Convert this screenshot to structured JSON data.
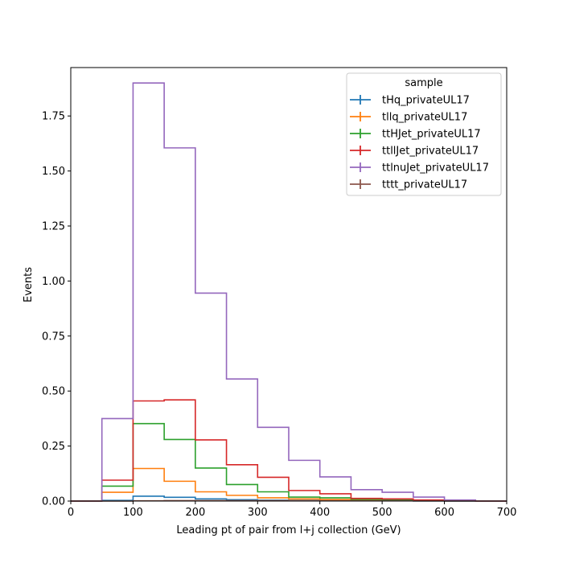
{
  "chart_data": {
    "type": "step-histogram",
    "xlabel": "Leading pt of pair from l+j collection (GeV)",
    "ylabel": "Events",
    "xlim": [
      0,
      700
    ],
    "ylim": [
      0,
      1.97
    ],
    "xticks": [
      "0",
      "100",
      "200",
      "300",
      "400",
      "500",
      "600",
      "700"
    ],
    "xtick_values": [
      0,
      100,
      200,
      300,
      400,
      500,
      600,
      700
    ],
    "yticks": [
      "0.00",
      "0.25",
      "0.50",
      "0.75",
      "1.00",
      "1.25",
      "1.50",
      "1.75"
    ],
    "ytick_values": [
      0,
      0.25,
      0.5,
      0.75,
      1.0,
      1.25,
      1.5,
      1.75
    ],
    "grid": false,
    "legend": {
      "title": "sample",
      "placement": "top-right"
    },
    "bin_edges": [
      0,
      50,
      100,
      150,
      200,
      250,
      300,
      350,
      400,
      450,
      500,
      550,
      600,
      650,
      700
    ],
    "series": [
      {
        "name": "tHq_privateUL17",
        "color": "#1f77b4",
        "values": [
          0,
          0.003,
          0.022,
          0.017,
          0.01,
          0.006,
          0.004,
          0.003,
          0.002,
          0.001,
          0.001,
          0.0005,
          0.0003,
          0
        ]
      },
      {
        "name": "tllq_privateUL17",
        "color": "#ff7f0e",
        "values": [
          0,
          0.04,
          0.148,
          0.09,
          0.042,
          0.026,
          0.015,
          0.01,
          0.007,
          0.005,
          0.003,
          0.002,
          0.001,
          0
        ]
      },
      {
        "name": "ttHJet_privateUL17",
        "color": "#2ca02c",
        "values": [
          0,
          0.068,
          0.352,
          0.28,
          0.15,
          0.075,
          0.042,
          0.018,
          0.015,
          0.008,
          0.005,
          0.003,
          0.001,
          0
        ]
      },
      {
        "name": "ttllJet_privateUL17",
        "color": "#d62728",
        "values": [
          0,
          0.095,
          0.455,
          0.46,
          0.278,
          0.165,
          0.108,
          0.048,
          0.033,
          0.012,
          0.01,
          0.005,
          0.001,
          0
        ]
      },
      {
        "name": "ttlnuJet_privateUL17",
        "color": "#9467bd",
        "values": [
          0,
          0.375,
          1.9,
          1.605,
          0.945,
          0.555,
          0.335,
          0.185,
          0.11,
          0.052,
          0.04,
          0.018,
          0.005,
          0
        ]
      },
      {
        "name": "tttt_privateUL17",
        "color": "#8c564b",
        "values": [
          0,
          0,
          0.001,
          0.002,
          0.002,
          0.002,
          0.002,
          0.002,
          0.001,
          0.001,
          0.001,
          0.0005,
          0.0003,
          0
        ]
      }
    ]
  }
}
